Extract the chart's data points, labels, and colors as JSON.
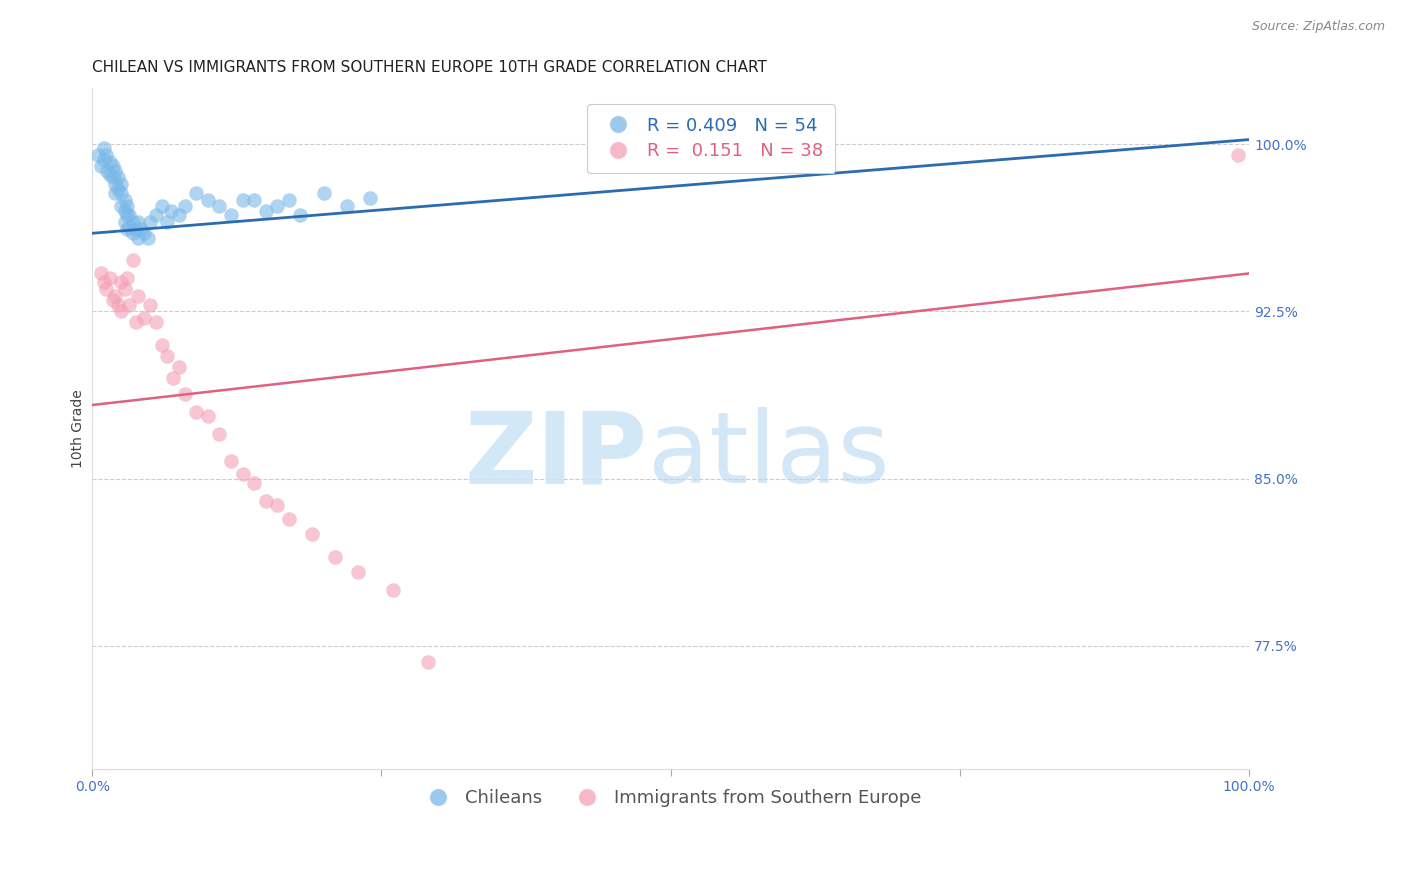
{
  "title": "CHILEAN VS IMMIGRANTS FROM SOUTHERN EUROPE 10TH GRADE CORRELATION CHART",
  "source": "Source: ZipAtlas.com",
  "ylabel": "10th Grade",
  "blue_R": 0.409,
  "blue_N": 54,
  "pink_R": 0.151,
  "pink_N": 38,
  "legend_label_blue": "Chileans",
  "legend_label_pink": "Immigrants from Southern Europe",
  "blue_color": "#7ab8e8",
  "pink_color": "#f4a0b5",
  "blue_line_color": "#2b6cb0",
  "pink_line_color": "#e06080",
  "xlim": [
    0.0,
    1.0
  ],
  "ylim": [
    0.72,
    1.025
  ],
  "right_yticks": [
    1.0,
    0.925,
    0.85,
    0.775
  ],
  "right_ytick_labels": [
    "100.0%",
    "92.5%",
    "85.0%",
    "77.5%"
  ],
  "grid_color": "#cccccc",
  "background_color": "#ffffff",
  "title_fontsize": 11,
  "axis_label_fontsize": 10,
  "tick_fontsize": 10,
  "legend_fontsize": 13,
  "source_fontsize": 9,
  "right_tick_color": "#4472c4",
  "bottom_tick_color": "#4472c4",
  "blue_line_y_start": 0.96,
  "blue_line_y_end": 1.002,
  "pink_line_y_start": 0.883,
  "pink_line_y_end": 0.942,
  "blue_scatter_x": [
    0.005,
    0.008,
    0.01,
    0.01,
    0.012,
    0.013,
    0.015,
    0.015,
    0.018,
    0.018,
    0.02,
    0.02,
    0.02,
    0.022,
    0.022,
    0.025,
    0.025,
    0.025,
    0.028,
    0.028,
    0.028,
    0.03,
    0.03,
    0.03,
    0.032,
    0.032,
    0.035,
    0.035,
    0.038,
    0.04,
    0.04,
    0.042,
    0.045,
    0.048,
    0.05,
    0.055,
    0.06,
    0.065,
    0.068,
    0.075,
    0.08,
    0.09,
    0.1,
    0.11,
    0.12,
    0.13,
    0.14,
    0.15,
    0.16,
    0.17,
    0.18,
    0.2,
    0.22,
    0.24
  ],
  "blue_scatter_y": [
    0.995,
    0.99,
    0.998,
    0.993,
    0.995,
    0.988,
    0.992,
    0.986,
    0.99,
    0.985,
    0.988,
    0.982,
    0.978,
    0.985,
    0.98,
    0.982,
    0.978,
    0.972,
    0.975,
    0.97,
    0.965,
    0.972,
    0.968,
    0.962,
    0.968,
    0.963,
    0.965,
    0.96,
    0.962,
    0.965,
    0.958,
    0.962,
    0.96,
    0.958,
    0.965,
    0.968,
    0.972,
    0.965,
    0.97,
    0.968,
    0.972,
    0.978,
    0.975,
    0.972,
    0.968,
    0.975,
    0.975,
    0.97,
    0.972,
    0.975,
    0.968,
    0.978,
    0.972,
    0.976
  ],
  "pink_scatter_x": [
    0.008,
    0.01,
    0.012,
    0.015,
    0.018,
    0.02,
    0.022,
    0.025,
    0.025,
    0.028,
    0.03,
    0.032,
    0.035,
    0.038,
    0.04,
    0.045,
    0.05,
    0.055,
    0.06,
    0.065,
    0.07,
    0.075,
    0.08,
    0.09,
    0.1,
    0.11,
    0.12,
    0.13,
    0.14,
    0.15,
    0.16,
    0.17,
    0.19,
    0.21,
    0.23,
    0.26,
    0.29,
    0.99
  ],
  "pink_scatter_y": [
    0.942,
    0.938,
    0.935,
    0.94,
    0.93,
    0.932,
    0.928,
    0.938,
    0.925,
    0.935,
    0.94,
    0.928,
    0.948,
    0.92,
    0.932,
    0.922,
    0.928,
    0.92,
    0.91,
    0.905,
    0.895,
    0.9,
    0.888,
    0.88,
    0.878,
    0.87,
    0.858,
    0.852,
    0.848,
    0.84,
    0.838,
    0.832,
    0.825,
    0.815,
    0.808,
    0.8,
    0.768,
    0.995
  ]
}
